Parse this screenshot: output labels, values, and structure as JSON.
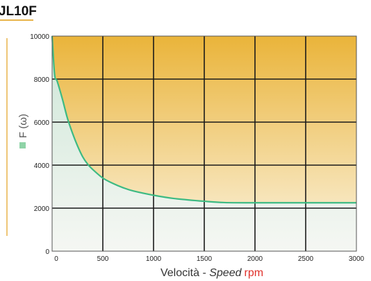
{
  "header": {
    "model": "JL10F"
  },
  "chart_data": {
    "type": "area",
    "x": [
      0,
      25,
      50,
      100,
      150,
      200,
      250,
      300,
      350,
      400,
      500,
      600,
      700,
      800,
      1000,
      1200,
      1500,
      1700,
      2000,
      2500,
      3000
    ],
    "series": [
      {
        "values": [
          10000,
          8200,
          7900,
          7100,
          6200,
          5500,
          4900,
          4400,
          4050,
          3800,
          3400,
          3150,
          2950,
          2800,
          2600,
          2450,
          2320,
          2260,
          2250,
          2250,
          2250
        ]
      }
    ],
    "xlim": [
      0,
      3000
    ],
    "ylim": [
      0,
      10000
    ],
    "xticks": [
      "0",
      "500",
      "1000",
      "1500",
      "2000",
      "2500",
      "3000"
    ],
    "yticks": [
      "0",
      "2000",
      "4000",
      "6000",
      "8000",
      "10000"
    ],
    "xlabel": {
      "main": "Velocità - ",
      "italic": "Speed",
      "unit": "rpm"
    },
    "ylabel": "F (ω)",
    "grid": true,
    "colors": {
      "curve": "#3dba83",
      "fill_top": "#eab43a",
      "fill_bottom": "#fbf4e2",
      "under_top": "#cde6d7",
      "under_bottom": "#f5f7f3",
      "frame": "#555555",
      "grid": "#1a1a1a",
      "unit": "#e0302a",
      "title_underline": "#e8b44a",
      "legend_square": "#8fd3a7"
    }
  }
}
